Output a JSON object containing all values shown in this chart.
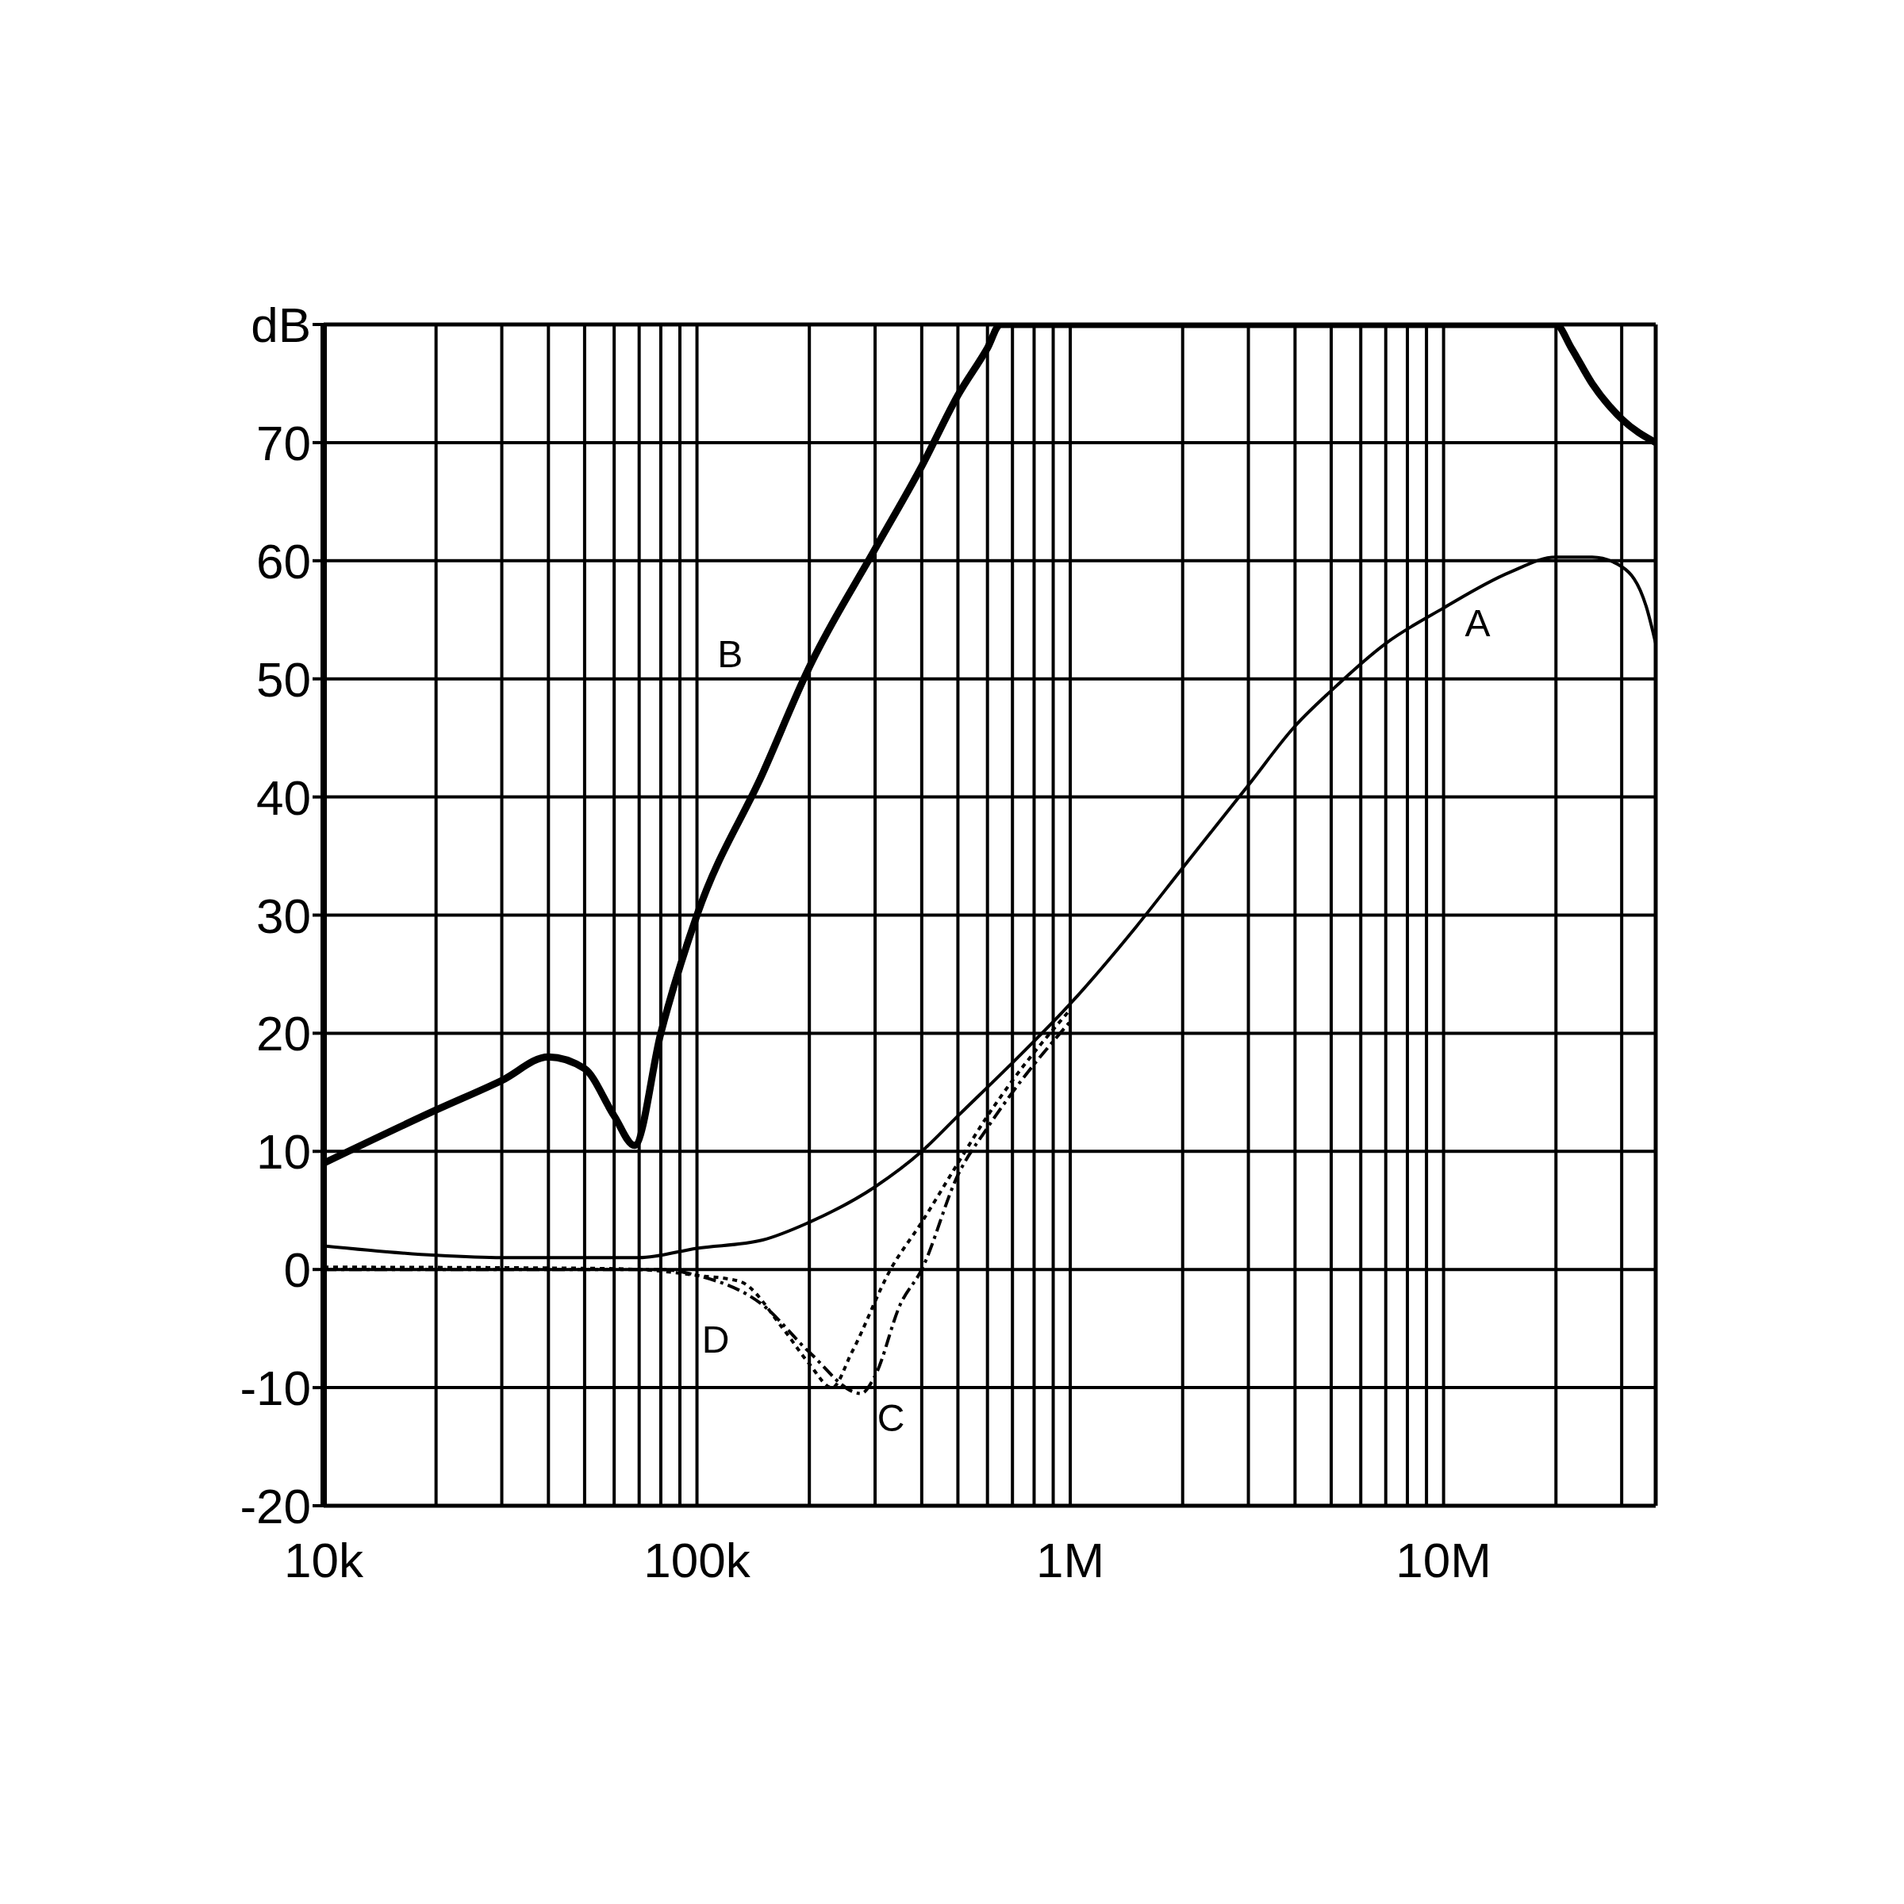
{
  "chart_data": {
    "type": "line",
    "log": "x",
    "grid": true,
    "legend": false,
    "marker": "none",
    "xlim": [
      10000,
      37000000
    ],
    "xticks": [
      {
        "value": 10000,
        "label": "10k"
      },
      {
        "value": 20000,
        "label": null
      },
      {
        "value": 30000,
        "label": null
      },
      {
        "value": 40000,
        "label": null
      },
      {
        "value": 50000,
        "label": null
      },
      {
        "value": 60000,
        "label": null
      },
      {
        "value": 70000,
        "label": null
      },
      {
        "value": 80000,
        "label": null
      },
      {
        "value": 90000,
        "label": null
      },
      {
        "value": 100000,
        "label": "100k"
      },
      {
        "value": 200000,
        "label": null
      },
      {
        "value": 300000,
        "label": null
      },
      {
        "value": 400000,
        "label": null
      },
      {
        "value": 500000,
        "label": null
      },
      {
        "value": 600000,
        "label": null
      },
      {
        "value": 700000,
        "label": null
      },
      {
        "value": 800000,
        "label": null
      },
      {
        "value": 900000,
        "label": null
      },
      {
        "value": 1000000,
        "label": "1M"
      },
      {
        "value": 2000000,
        "label": null
      },
      {
        "value": 3000000,
        "label": null
      },
      {
        "value": 4000000,
        "label": null
      },
      {
        "value": 5000000,
        "label": null
      },
      {
        "value": 6000000,
        "label": null
      },
      {
        "value": 7000000,
        "label": null
      },
      {
        "value": 8000000,
        "label": null
      },
      {
        "value": 9000000,
        "label": null
      },
      {
        "value": 10000000,
        "label": "10M"
      },
      {
        "value": 20000000,
        "label": null
      },
      {
        "value": 30000000,
        "label": null
      }
    ],
    "ylim": [
      -20,
      80
    ],
    "yticks": [
      -20,
      -10,
      0,
      10,
      20,
      30,
      40,
      50,
      60,
      70,
      {
        "value": 80,
        "label": "dB"
      }
    ],
    "series": [
      {
        "name": "A",
        "color": "#000000",
        "line_style": "solid",
        "x": [
          10000,
          20000,
          30000,
          50000,
          70000,
          100000,
          150000,
          200000,
          300000,
          400000,
          500000,
          700000,
          1000000,
          1500000,
          2000000,
          3000000,
          4000000,
          5000000,
          7000000,
          10000000,
          15000000,
          20000000,
          25000000,
          30000000,
          35000000,
          37000000
        ],
        "values": [
          2,
          1.2,
          1,
          1,
          1,
          1.8,
          2.5,
          4,
          7,
          10,
          13,
          17.5,
          22.5,
          29,
          34,
          41,
          46,
          49,
          53,
          56,
          59,
          60.3,
          60.3,
          59.5,
          56,
          53
        ]
      },
      {
        "name": "B",
        "color": "#000000",
        "line_style": "solid",
        "x": [
          10000,
          20000,
          30000,
          40000,
          50000,
          60000,
          68000,
          80000,
          100000,
          150000,
          200000,
          300000,
          400000,
          500000,
          600000,
          650000,
          20000000,
          22000000,
          25000000,
          30000000,
          37000000
        ],
        "values": [
          9,
          13.5,
          16,
          18,
          17,
          13,
          10.5,
          20,
          30,
          42,
          51,
          61,
          68,
          74,
          78,
          80,
          80,
          78,
          75,
          72,
          70
        ]
      },
      {
        "name": "C",
        "color": "#000000",
        "line_style": "dashed",
        "x": [
          10000,
          50000,
          80000,
          100000,
          150000,
          200000,
          275000,
          300000,
          350000,
          400000,
          500000,
          600000,
          700000,
          1000000
        ],
        "values": [
          0,
          0,
          0,
          -0.5,
          -3,
          -7,
          -10.5,
          -9,
          -3,
          0,
          8,
          12,
          15,
          21
        ]
      },
      {
        "name": "D",
        "color": "#000000",
        "line_style": "dotted",
        "x": [
          10000,
          50000,
          70000,
          100000,
          130000,
          170000,
          200000,
          230000,
          260000,
          330000,
          400000,
          500000,
          600000,
          700000,
          1000000
        ],
        "values": [
          0.2,
          0.1,
          0,
          -0.5,
          -1,
          -5,
          -8,
          -10,
          -7,
          0,
          4,
          9,
          13,
          16,
          22
        ]
      }
    ]
  }
}
